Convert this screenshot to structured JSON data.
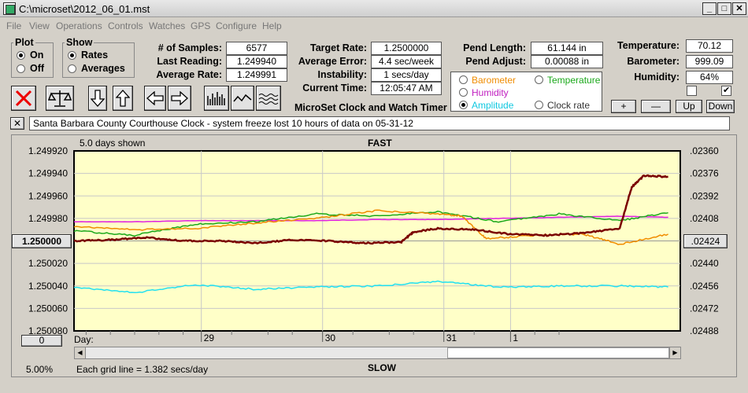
{
  "window": {
    "title": "C:\\microset\\2012_06_01.mst"
  },
  "menu": [
    "File",
    "View",
    "Operations",
    "Controls",
    "Watches",
    "GPS",
    "Configure",
    "Help"
  ],
  "plot_group": {
    "title": "Plot",
    "options": [
      "On",
      "Off"
    ],
    "selected": "On"
  },
  "show_group": {
    "title": "Show",
    "options": [
      "Rates",
      "Averages"
    ],
    "selected": "Rates"
  },
  "stats": {
    "samples_label": "# of Samples:",
    "samples": "6577",
    "last_reading_label": "Last Reading:",
    "last_reading": "1.249940",
    "average_rate_label": "Average Rate:",
    "average_rate": "1.249991",
    "target_rate_label": "Target Rate:",
    "target_rate": "1.2500000",
    "average_error_label": "Average Error:",
    "average_error": "4.4 sec/week",
    "instability_label": "Instability:",
    "instability": "1 secs/day",
    "current_time_label": "Current Time:",
    "current_time": "12:05:47 AM",
    "pend_length_label": "Pend Length:",
    "pend_length": "61.144 in",
    "pend_adjust_label": "Pend Adjust:",
    "pend_adjust": "0.00088 in",
    "temperature_label": "Temperature:",
    "temperature": "70.12",
    "barometer_label": "Barometer:",
    "barometer": "999.09",
    "humidity_label": "Humidity:",
    "humidity": "64%"
  },
  "app_title": "MicroSet Clock and Watch Timer",
  "series_select": {
    "barometer": "Barometer",
    "temperature": "Temperature",
    "humidity": "Humidity",
    "amplitude": "Amplitude",
    "clock_rate": "Clock rate",
    "selected": "Amplitude"
  },
  "adjust_buttons": {
    "plus": "+",
    "minus": "—",
    "up": "Up",
    "down": "Down"
  },
  "note": {
    "close": "✕",
    "text": "Santa Barbara County Courthouse Clock - system freeze lost 10 hours of data on 05-31-12"
  },
  "chart_header": {
    "days_shown": "5.0 days shown",
    "top": "FAST",
    "bottom": "SLOW"
  },
  "chart_footer": {
    "percent": "5.00%",
    "grid_line": "Each grid line = 1.382 secs/day",
    "day_label": "Day:",
    "zero_button": "0",
    "center_left": "1.250000",
    "center_right": ".02424"
  },
  "colors": {
    "plot_bg": "#ffffc8",
    "clock_rate": "#7a0000",
    "barometer": "#f08c00",
    "temperature": "#1aa81a",
    "humidity": "#e020e0",
    "amplitude": "#22e0f0"
  },
  "chart_data": {
    "type": "line",
    "x_ticks": [
      "29",
      "30",
      "31",
      "1"
    ],
    "y_left_ticks": [
      "1.249920",
      "1.249940",
      "1.249960",
      "1.249980",
      "1.250000",
      "1.250020",
      "1.250040",
      "1.250060",
      "1.250080"
    ],
    "y_right_ticks": [
      ".02360",
      ".02376",
      ".02392",
      ".02408",
      ".02424",
      ".02440",
      ".02456",
      ".02472",
      ".02488"
    ],
    "y_left_range": [
      1.24992,
      1.25008
    ],
    "x_range_days": [
      0,
      5.0
    ],
    "series": [
      {
        "name": "Clock rate",
        "color": "#7a0000",
        "x": [
          0,
          0.3,
          0.6,
          0.9,
          1.2,
          1.5,
          1.8,
          2.1,
          2.4,
          2.7,
          2.8,
          3.0,
          3.3,
          3.6,
          3.9,
          4.2,
          4.5,
          4.6,
          4.7,
          4.9
        ],
        "y": [
          1.25,
          1.249999,
          1.249997,
          1.25,
          1.25,
          1.250002,
          1.249999,
          1.25,
          1.250002,
          1.250001,
          1.249992,
          1.249989,
          1.24999,
          1.249994,
          1.249995,
          1.249993,
          1.249989,
          1.249952,
          1.249942,
          1.249943
        ]
      },
      {
        "name": "Temperature",
        "color": "#1aa81a",
        "x": [
          0,
          0.5,
          1.0,
          1.5,
          2.0,
          2.5,
          3.0,
          3.5,
          4.0,
          4.5,
          4.9
        ],
        "y": [
          1.249991,
          1.249995,
          1.249985,
          1.249983,
          1.249976,
          1.249978,
          1.249974,
          1.249983,
          1.249976,
          1.249982,
          1.249975
        ]
      },
      {
        "name": "Barometer",
        "color": "#f08c00",
        "x": [
          0,
          0.5,
          1.0,
          1.5,
          2.0,
          2.5,
          3.0,
          3.2,
          3.4,
          3.8,
          4.2,
          4.5,
          4.9
        ],
        "y": [
          1.249987,
          1.24999,
          1.249989,
          1.249984,
          1.24998,
          1.249973,
          1.249976,
          1.249978,
          1.249998,
          1.249995,
          1.249994,
          1.250003,
          1.249994
        ]
      },
      {
        "name": "Humidity",
        "color": "#e020e0",
        "x": [
          0,
          0.5,
          1.0,
          1.5,
          2.0,
          2.5,
          3.0,
          3.5,
          4.0,
          4.5,
          4.9
        ],
        "y": [
          1.249983,
          1.249983,
          1.249982,
          1.249982,
          1.249982,
          1.249981,
          1.249981,
          1.24998,
          1.249979,
          1.249978,
          1.249979
        ]
      },
      {
        "name": "Amplitude",
        "color": "#22e0f0",
        "x": [
          0,
          0.5,
          1.0,
          1.5,
          2.0,
          2.5,
          3.0,
          3.5,
          4.0,
          4.5,
          4.9
        ],
        "y": [
          1.250041,
          1.250046,
          1.250039,
          1.250043,
          1.250041,
          1.25004,
          1.250036,
          1.250041,
          1.25004,
          1.25004,
          1.250041
        ]
      }
    ]
  }
}
